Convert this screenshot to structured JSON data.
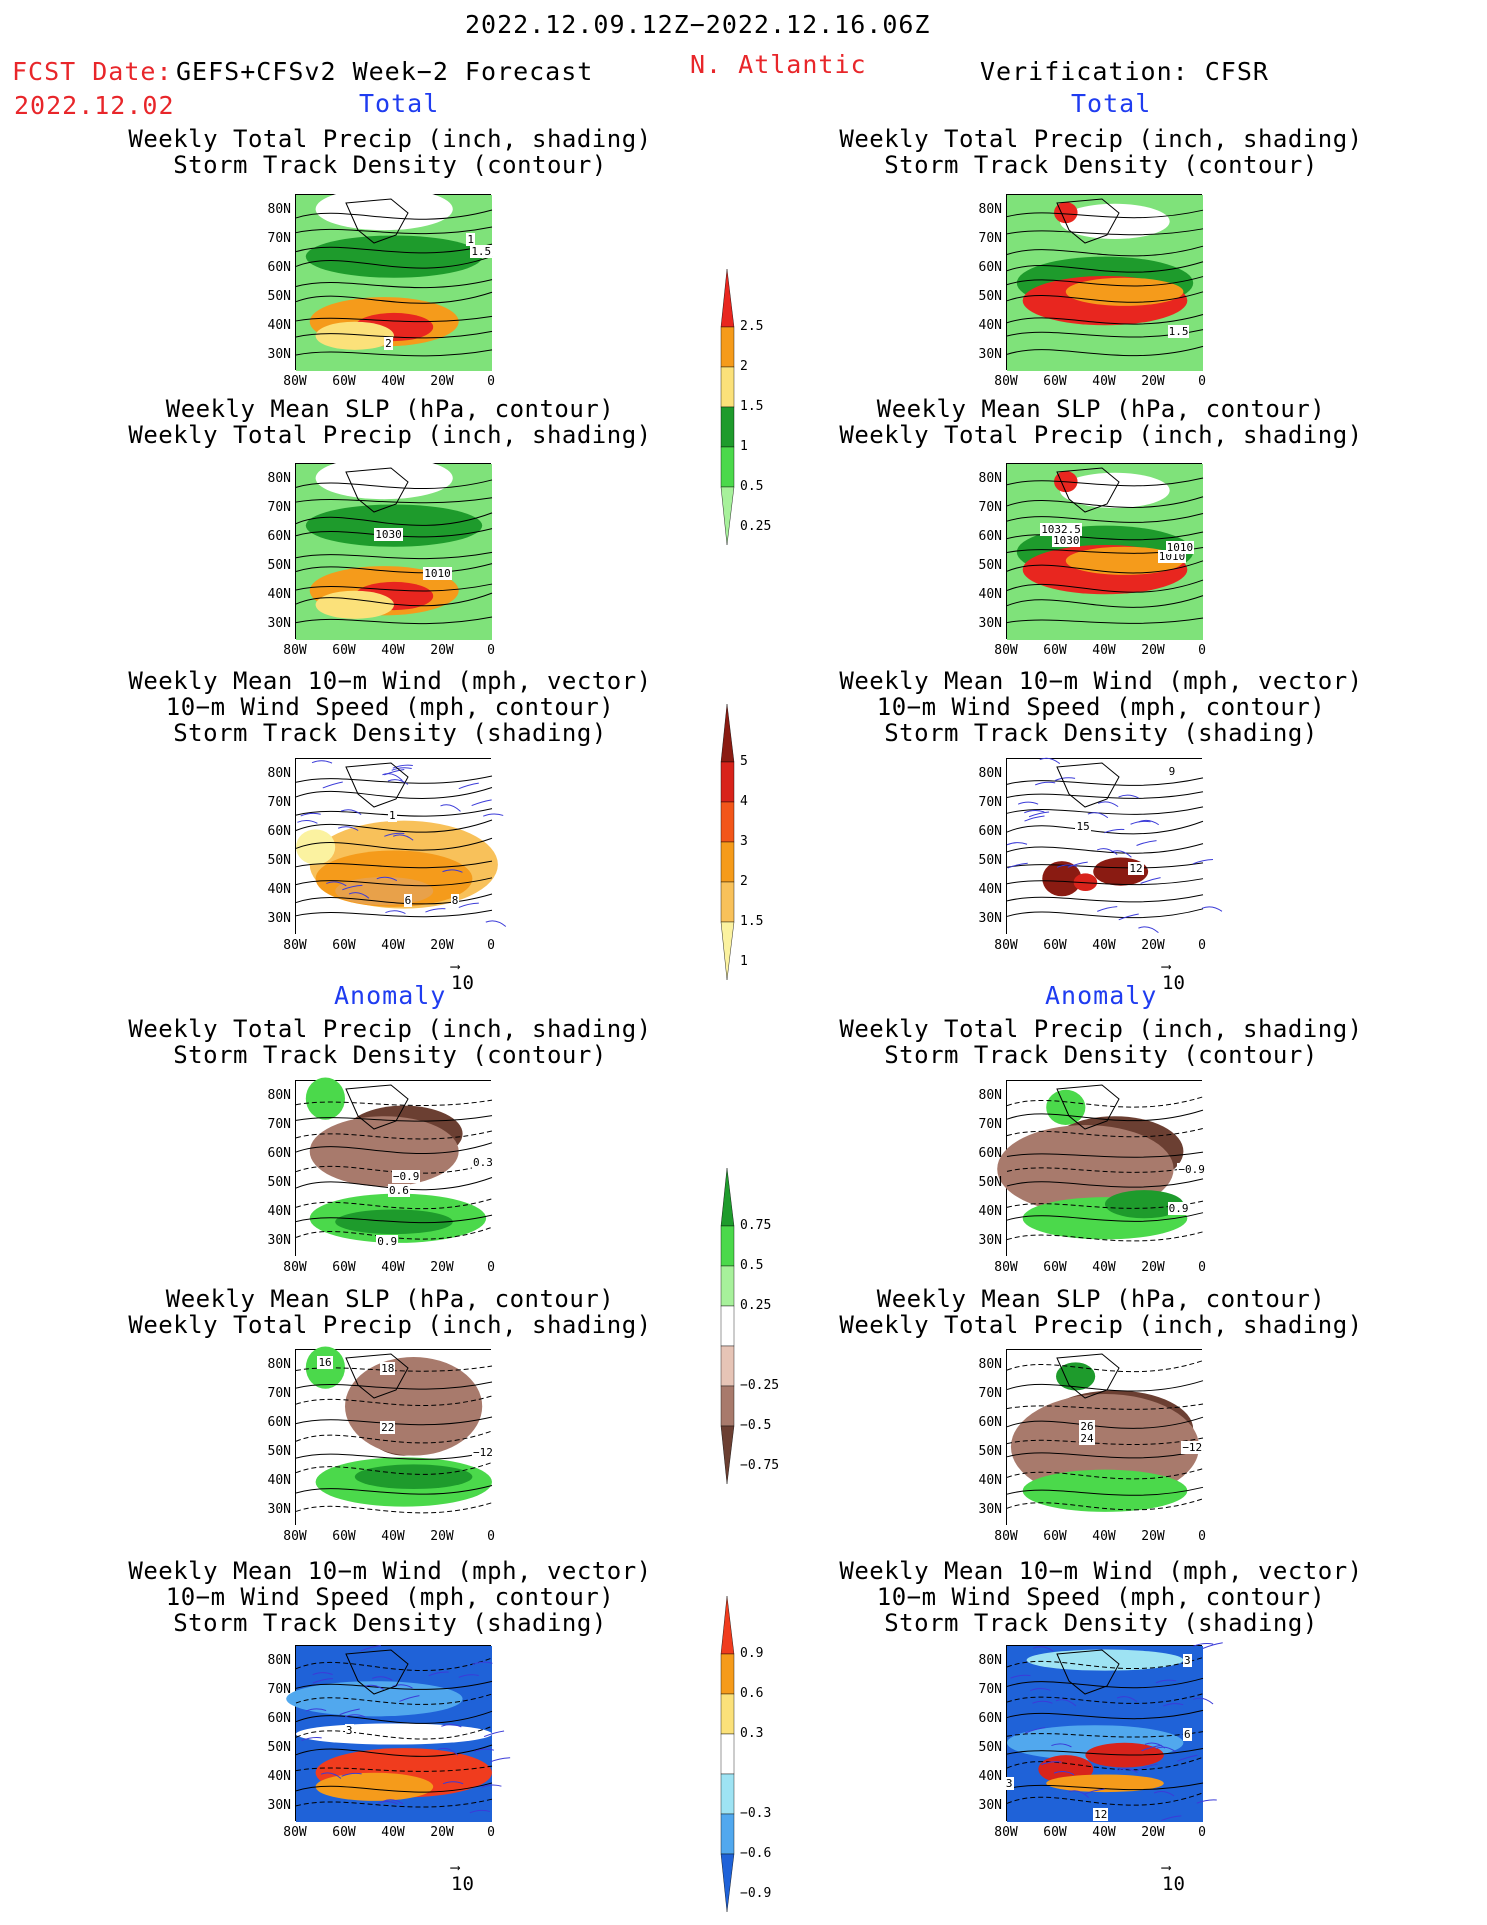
{
  "header": {
    "period": "2022.12.09.12Z−2022.12.16.06Z",
    "fcst_label": "FCST Date:",
    "fcst_value": "GEFS+CFSv2 Week−2 Forecast",
    "fcst_date": "2022.12.02",
    "region": "N. Atlantic",
    "verification": "Verification: CFSR"
  },
  "sections": {
    "total_left": "Total",
    "total_right": "Total",
    "anomaly_left": "Anomaly",
    "anomaly_right": "Anomaly"
  },
  "titles": {
    "precip_storm": [
      "Weekly Total Precip (inch, shading)",
      "Storm Track Density (contour)"
    ],
    "slp_precip": [
      "Weekly Mean SLP (hPa, contour)",
      "Weekly Total Precip (inch, shading)"
    ],
    "wind_storm": [
      "Weekly Mean 10−m Wind (mph, vector)",
      "10−m Wind Speed (mph, contour)",
      "Storm Track Density (shading)"
    ]
  },
  "axes": {
    "lat_ticks": [
      "80N",
      "70N",
      "60N",
      "50N",
      "40N",
      "30N"
    ],
    "lon_ticks": [
      "80W",
      "60W",
      "40W",
      "20W",
      "0"
    ]
  },
  "vector_ref": "10",
  "colorbars": {
    "precip_total": {
      "labels": [
        "2.5",
        "2",
        "1.5",
        "1",
        "0.5",
        "0.25"
      ],
      "colors": [
        "#e8261f",
        "#f59b1b",
        "#fbe17a",
        "#1e9b2c",
        "#4bd94b",
        "#a7f19b"
      ]
    },
    "storm_total": {
      "labels": [
        "5",
        "4",
        "3",
        "2",
        "1.5",
        "1"
      ],
      "colors": [
        "#8a1b12",
        "#d8231b",
        "#f2561a",
        "#f59b1b",
        "#f8c15a",
        "#fbf2a0"
      ]
    },
    "precip_anom": {
      "labels": [
        "0.75",
        "0.5",
        "0.25",
        "−0.25",
        "−0.5",
        "−0.75"
      ],
      "colors": [
        "#1e9b2c",
        "#4bd94b",
        "#a7f19b",
        "#ffffff",
        "#e6c4b6",
        "#a87a6c",
        "#6b3f32"
      ]
    },
    "storm_anom": {
      "labels": [
        "0.9",
        "0.6",
        "0.3",
        "−0.3",
        "−0.6",
        "−0.9"
      ],
      "colors": [
        "#f03c1e",
        "#f59b1b",
        "#fbe17a",
        "#ffffff",
        "#9ee3f3",
        "#51a8ee",
        "#1f62d8"
      ]
    }
  },
  "maps": [
    {
      "id": "fc-precip-storm",
      "theme": "precip",
      "labels": [
        "1",
        "1.5",
        "2"
      ]
    },
    {
      "id": "fc-slp-precip",
      "theme": "precip",
      "labels": [
        "1030",
        "1010"
      ]
    },
    {
      "id": "fc-wind-storm",
      "theme": "storm",
      "labels": [
        "1",
        "6",
        "8"
      ]
    },
    {
      "id": "fc-anom-precip-storm",
      "theme": "anom_precip",
      "labels": [
        "−0.9",
        "0.6",
        "0.3",
        "0.9"
      ]
    },
    {
      "id": "fc-anom-slp-precip",
      "theme": "anom_precip2",
      "labels": [
        "16",
        "18",
        "22",
        "−12"
      ]
    },
    {
      "id": "fc-anom-wind-storm",
      "theme": "anom_storm",
      "labels": [
        "3"
      ]
    },
    {
      "id": "vf-precip-storm",
      "theme": "precip_v",
      "labels": [
        "1.5"
      ]
    },
    {
      "id": "vf-slp-precip",
      "theme": "precip_v",
      "labels": [
        "1032.5",
        "1030",
        "1010",
        "1010"
      ]
    },
    {
      "id": "vf-wind-storm",
      "theme": "storm_v",
      "labels": [
        "9",
        "15",
        "12"
      ]
    },
    {
      "id": "vf-anom-precip-storm",
      "theme": "anom_precip_v",
      "labels": [
        "−0.9",
        "0.9"
      ]
    },
    {
      "id": "vf-anom-slp-precip",
      "theme": "anom_precip2_v",
      "labels": [
        "26",
        "24",
        "−12"
      ]
    },
    {
      "id": "vf-anom-wind-storm",
      "theme": "anom_storm_v",
      "labels": [
        "3",
        "6",
        "3",
        "12"
      ]
    }
  ]
}
